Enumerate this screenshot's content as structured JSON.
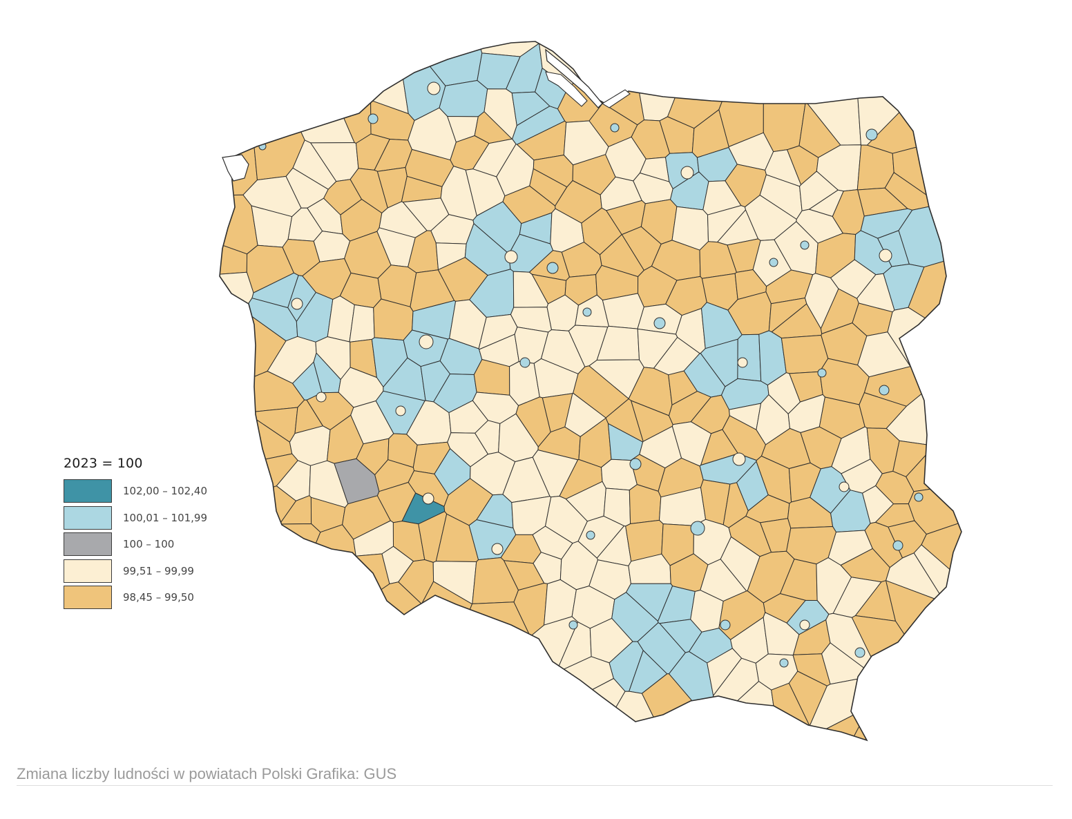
{
  "map": {
    "colors": {
      "dark_teal": "#3f93a6",
      "light_blue": "#acd7e2",
      "gray": "#a8a9ac",
      "cream": "#fcefd3",
      "orange": "#efc47b",
      "border": "#2e2e2e",
      "water": "#ffffff"
    }
  },
  "legend": {
    "title": "2023 = 100",
    "items": [
      {
        "label": "102,00 – 102,40",
        "color": "#3f93a6"
      },
      {
        "label": "100,01 – 101,99",
        "color": "#acd7e2"
      },
      {
        "label": "100 – 100",
        "color": "#a8a9ac"
      },
      {
        "label": "99,51 – 99,99",
        "color": "#fcefd3"
      },
      {
        "label": "98,45 – 99,50",
        "color": "#efc47b"
      }
    ]
  },
  "caption": "Zmiana liczby ludności w powiatach Polski Grafika: GUS"
}
